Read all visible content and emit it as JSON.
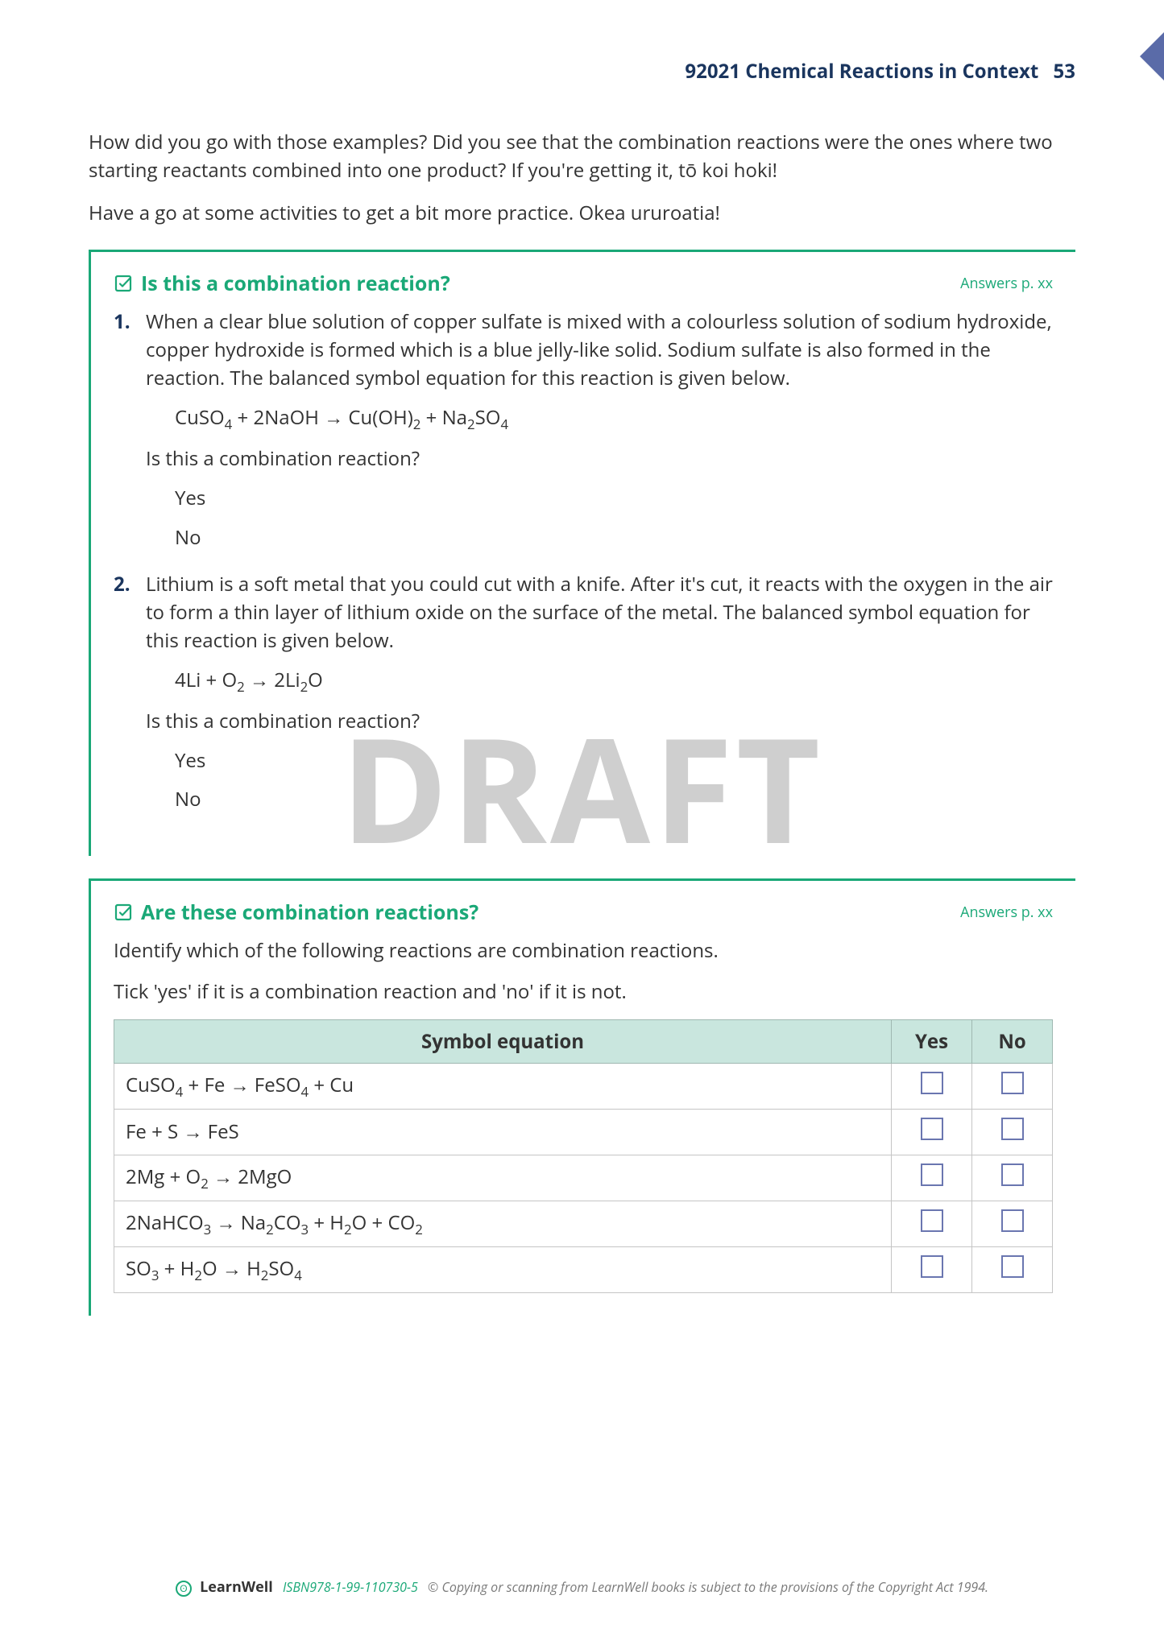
{
  "header": {
    "course_code": "92021",
    "course_title": "Chemical Reactions in Context",
    "page_number": "53"
  },
  "intro": {
    "p1": "How did you go with those examples? Did you see that the combination reactions were the ones where two starting reactants combined into one product? If you're getting it, tō koi hoki!",
    "p2": "Have a go at some activities to get a bit more practice. Okea ururoatia!"
  },
  "activity1": {
    "title": "Is this a combination reaction?",
    "answers_ref": "Answers p. xx",
    "q1": {
      "num": "1.",
      "text": "When a clear blue solution of copper sulfate is mixed with a colourless solution of sodium hydroxide, copper hydroxide is formed which is a blue jelly-like solid. Sodium sulfate is also formed in the reaction. The balanced symbol equation for this reaction is given below.",
      "equation_html": "CuSO<sub>4</sub> + 2NaOH → Cu(OH)<sub>2</sub> + Na<sub>2</sub>SO<sub>4</sub>",
      "prompt": "Is this a combination reaction?",
      "opt_yes": "Yes",
      "opt_no": "No"
    },
    "q2": {
      "num": "2.",
      "text": "Lithium is a soft metal that you could cut with a knife. After it's cut, it reacts with the oxygen in the air to form a thin layer of lithium oxide on the surface of the metal. The balanced symbol equation for this reaction is given below.",
      "equation_html": "4Li + O<sub>2</sub> → 2Li<sub>2</sub>O",
      "prompt": "Is this a combination reaction?",
      "opt_yes": "Yes",
      "opt_no": "No"
    }
  },
  "activity2": {
    "title": "Are these combination reactions?",
    "answers_ref": "Answers p. xx",
    "instruction1": "Identify which of the following reactions are combination reactions.",
    "instruction2": "Tick 'yes' if it is a combination reaction and 'no' if it is not.",
    "table": {
      "header_eq": "Symbol equation",
      "header_yes": "Yes",
      "header_no": "No",
      "rows": [
        {
          "eq_html": "CuSO<sub>4</sub> + Fe → FeSO<sub>4</sub> + Cu"
        },
        {
          "eq_html": "Fe + S → FeS"
        },
        {
          "eq_html": "2Mg + O<sub>2</sub> → 2MgO"
        },
        {
          "eq_html": "2NaHCO<sub>3</sub> → Na<sub>2</sub>CO<sub>3</sub> + H<sub>2</sub>O + CO<sub>2</sub>"
        },
        {
          "eq_html": "SO<sub>3</sub> + H<sub>2</sub>O → H<sub>2</sub>SO<sub>4</sub>"
        }
      ]
    }
  },
  "watermark": "DRAFT",
  "footer": {
    "brand": "LearnWell",
    "isbn": "ISBN978-1-99-110730-5",
    "copyright": "© Copying or scanning from LearnWell books is subject to the provisions of the Copyright Act 1994."
  },
  "colors": {
    "accent_green": "#1aa877",
    "navy": "#1a355e",
    "tab": "#5a6ba8",
    "table_header_bg": "#c9e6de",
    "checkbox_border": "#6a76b0",
    "watermark": "#cfcfcf"
  }
}
